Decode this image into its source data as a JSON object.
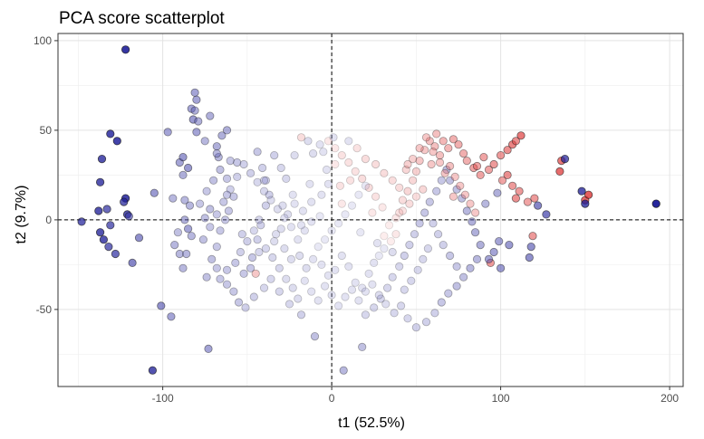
{
  "chart_data": {
    "type": "scatter",
    "title": "PCA score scatterplot",
    "xlabel": "t1 (52.5%)",
    "ylabel": "t2 (9.7%)",
    "xlim": [
      -162,
      208
    ],
    "ylim": [
      -93,
      104
    ],
    "xticks": [
      -100,
      0,
      100,
      200
    ],
    "yticks": [
      -50,
      0,
      50,
      100
    ],
    "xtick_labels": [
      "-100",
      "0",
      "100",
      "200"
    ],
    "ytick_labels": [
      "-50",
      "0",
      "50",
      "100"
    ],
    "grid": true,
    "reference_lines": {
      "x": 0,
      "y": 0,
      "style": "dashed"
    },
    "color_scale": {
      "low": "#00008b",
      "mid": "#ffffff",
      "high": "#d40000",
      "range": [
        -1,
        1
      ]
    },
    "points": [
      [
        -122,
        95,
        -0.95
      ],
      [
        -127,
        44,
        -0.9
      ],
      [
        -131,
        48,
        -0.88
      ],
      [
        -136,
        34,
        -0.85
      ],
      [
        -137,
        21,
        -0.85
      ],
      [
        -138,
        5,
        -0.85
      ],
      [
        -122,
        12,
        -0.9
      ],
      [
        -121,
        3,
        -0.85
      ],
      [
        -123,
        10,
        -0.8
      ],
      [
        -133,
        6,
        -0.75
      ],
      [
        -131,
        -3,
        -0.75
      ],
      [
        -135,
        -11,
        -0.85
      ],
      [
        -137,
        -7,
        -0.85
      ],
      [
        -148,
        -1,
        -0.8
      ],
      [
        -132,
        -15,
        -0.75
      ],
      [
        -128,
        -19,
        -0.75
      ],
      [
        -120,
        2,
        -0.65
      ],
      [
        -114,
        -10,
        -0.6
      ],
      [
        -118,
        -24,
        -0.65
      ],
      [
        -106,
        -84,
        -0.85
      ],
      [
        -101,
        -48,
        -0.6
      ],
      [
        -95,
        -54,
        -0.5
      ],
      [
        -105,
        15,
        -0.55
      ],
      [
        -97,
        49,
        -0.5
      ],
      [
        -90,
        32,
        -0.5
      ],
      [
        -88,
        35,
        -0.55
      ],
      [
        -85,
        29,
        -0.55
      ],
      [
        -83,
        62,
        -0.5
      ],
      [
        -81,
        71,
        -0.5
      ],
      [
        -80,
        67,
        -0.5
      ],
      [
        -82,
        56,
        -0.55
      ],
      [
        -80,
        49,
        -0.5
      ],
      [
        -81,
        61,
        -0.45
      ],
      [
        -79,
        55,
        -0.45
      ],
      [
        -88,
        25,
        -0.45
      ],
      [
        -94,
        12,
        -0.4
      ],
      [
        -87,
        11,
        -0.4
      ],
      [
        -84,
        8,
        -0.4
      ],
      [
        -87,
        0,
        -0.45
      ],
      [
        -85,
        -5,
        -0.5
      ],
      [
        -83,
        -9,
        -0.4
      ],
      [
        -88,
        -27,
        -0.4
      ],
      [
        -90,
        -19,
        -0.4
      ],
      [
        -93,
        -14,
        -0.4
      ],
      [
        -86,
        -19,
        -0.4
      ],
      [
        -91,
        -7,
        -0.35
      ],
      [
        -75,
        1,
        -0.35
      ],
      [
        -72,
        6,
        -0.35
      ],
      [
        -68,
        41,
        -0.45
      ],
      [
        -65,
        47,
        -0.45
      ],
      [
        -62,
        50,
        -0.45
      ],
      [
        -67,
        35,
        -0.4
      ],
      [
        -68,
        37,
        -0.4
      ],
      [
        -72,
        58,
        -0.45
      ],
      [
        -75,
        44,
        -0.4
      ],
      [
        -60,
        33,
        -0.3
      ],
      [
        -62,
        23,
        -0.3
      ],
      [
        -56,
        32,
        -0.3
      ],
      [
        -58,
        13,
        -0.3
      ],
      [
        -61,
        5,
        -0.3
      ],
      [
        -66,
        -6,
        -0.3
      ],
      [
        -68,
        -15,
        -0.3
      ],
      [
        -71,
        -22,
        -0.35
      ],
      [
        -74,
        -32,
        -0.35
      ],
      [
        -73,
        -72,
        -0.5
      ],
      [
        -68,
        -27,
        -0.3
      ],
      [
        -62,
        -28,
        -0.3
      ],
      [
        -57,
        -24,
        -0.3
      ],
      [
        -52,
        -30,
        -0.3
      ],
      [
        -48,
        -27,
        -0.3
      ],
      [
        -47,
        -21,
        -0.3
      ],
      [
        -44,
        -11,
        -0.25
      ],
      [
        -42,
        -3,
        -0.25
      ],
      [
        -39,
        8,
        -0.25
      ],
      [
        -37,
        14,
        -0.25
      ],
      [
        -39,
        22,
        -0.25
      ],
      [
        -41,
        29,
        -0.25
      ],
      [
        -44,
        38,
        -0.3
      ],
      [
        -34,
        36,
        -0.25
      ],
      [
        -30,
        29,
        -0.2
      ],
      [
        -27,
        23,
        -0.2
      ],
      [
        -22,
        36,
        -0.15
      ],
      [
        -18,
        46,
        0.15
      ],
      [
        -14,
        44,
        -0.15
      ],
      [
        -11,
        37,
        -0.15
      ],
      [
        -7,
        42,
        -0.1
      ],
      [
        -5,
        38,
        -0.1
      ],
      [
        -3,
        28,
        -0.1
      ],
      [
        2,
        31,
        0.05
      ],
      [
        1,
        46,
        -0.1
      ],
      [
        -2,
        20,
        -0.1
      ],
      [
        -6,
        14,
        -0.1
      ],
      [
        -12,
        10,
        -0.1
      ],
      [
        -17,
        5,
        -0.1
      ],
      [
        -22,
        9,
        -0.1
      ],
      [
        -26,
        3,
        -0.15
      ],
      [
        -30,
        -5,
        -0.15
      ],
      [
        -34,
        -12,
        -0.15
      ],
      [
        -28,
        -16,
        -0.15
      ],
      [
        -24,
        -22,
        -0.15
      ],
      [
        -19,
        -20,
        -0.15
      ],
      [
        -15,
        -27,
        -0.15
      ],
      [
        -11,
        -22,
        -0.1
      ],
      [
        -6,
        -25,
        -0.1
      ],
      [
        -2,
        -31,
        -0.1
      ],
      [
        2,
        -28,
        -0.1
      ],
      [
        6,
        -20,
        -0.1
      ],
      [
        10,
        -26,
        -0.1
      ],
      [
        14,
        -35,
        -0.1
      ],
      [
        18,
        -38,
        -0.1
      ],
      [
        22,
        -30,
        -0.1
      ],
      [
        25,
        -24,
        -0.1
      ],
      [
        28,
        -20,
        -0.05
      ],
      [
        31,
        -16,
        -0.05
      ],
      [
        35,
        -12,
        0.0
      ],
      [
        38,
        -8,
        0.05
      ],
      [
        40,
        4,
        0.1
      ],
      [
        42,
        11,
        0.15
      ],
      [
        45,
        16,
        0.2
      ],
      [
        48,
        22,
        0.2
      ],
      [
        50,
        27,
        0.25
      ],
      [
        52,
        33,
        0.3
      ],
      [
        55,
        39,
        0.3
      ],
      [
        58,
        44,
        0.35
      ],
      [
        61,
        41,
        0.35
      ],
      [
        64,
        36,
        0.35
      ],
      [
        66,
        44,
        0.4
      ],
      [
        69,
        40,
        0.4
      ],
      [
        72,
        45,
        0.45
      ],
      [
        75,
        42,
        0.45
      ],
      [
        78,
        37,
        0.45
      ],
      [
        80,
        33,
        0.45
      ],
      [
        84,
        29,
        0.5
      ],
      [
        86,
        30,
        0.5
      ],
      [
        88,
        25,
        0.5
      ],
      [
        90,
        35,
        0.5
      ],
      [
        93,
        28,
        0.5
      ],
      [
        96,
        31,
        0.55
      ],
      [
        100,
        36,
        0.55
      ],
      [
        104,
        39,
        0.6
      ],
      [
        107,
        42,
        0.65
      ],
      [
        109,
        44,
        0.6
      ],
      [
        112,
        47,
        0.7
      ],
      [
        104,
        25,
        0.6
      ],
      [
        101,
        22,
        0.5
      ],
      [
        107,
        19,
        0.55
      ],
      [
        109,
        12,
        0.6
      ],
      [
        111,
        16,
        0.55
      ],
      [
        120,
        12,
        0.55
      ],
      [
        116,
        10,
        0.5
      ],
      [
        135,
        27,
        0.75
      ],
      [
        136,
        33,
        0.7
      ],
      [
        150,
        11,
        0.75
      ],
      [
        152,
        14,
        0.8
      ],
      [
        138,
        34,
        -0.8
      ],
      [
        148,
        16,
        -0.85
      ],
      [
        150,
        9,
        -0.85
      ],
      [
        192,
        9,
        -1.0
      ],
      [
        127,
        3,
        -0.7
      ],
      [
        122,
        8,
        -0.65
      ],
      [
        119,
        -9,
        0.55
      ],
      [
        118,
        -15,
        -0.6
      ],
      [
        117,
        -21,
        -0.6
      ],
      [
        105,
        -14,
        -0.55
      ],
      [
        99,
        -12,
        -0.5
      ],
      [
        96,
        -18,
        -0.5
      ],
      [
        94,
        -24,
        0.55
      ],
      [
        100,
        -27,
        -0.55
      ],
      [
        93,
        -22,
        -0.5
      ],
      [
        88,
        -14,
        -0.45
      ],
      [
        85,
        -7,
        -0.45
      ],
      [
        83,
        -1,
        -0.45
      ],
      [
        80,
        5,
        -0.4
      ],
      [
        77,
        12,
        -0.35
      ],
      [
        74,
        17,
        -0.35
      ],
      [
        70,
        22,
        -0.35
      ],
      [
        68,
        28,
        -0.35
      ],
      [
        65,
        22,
        -0.3
      ],
      [
        62,
        16,
        -0.3
      ],
      [
        58,
        10,
        -0.3
      ],
      [
        55,
        4,
        -0.3
      ],
      [
        52,
        -2,
        -0.3
      ],
      [
        49,
        -8,
        -0.25
      ],
      [
        46,
        -14,
        -0.25
      ],
      [
        43,
        -20,
        -0.25
      ],
      [
        40,
        -26,
        -0.2
      ],
      [
        36,
        -32,
        -0.2
      ],
      [
        33,
        -38,
        -0.2
      ],
      [
        29,
        -44,
        -0.2
      ],
      [
        25,
        -49,
        -0.2
      ],
      [
        20,
        -53,
        -0.2
      ],
      [
        18,
        -71,
        -0.35
      ],
      [
        7,
        -84,
        -0.4
      ],
      [
        -10,
        -65,
        -0.35
      ],
      [
        -18,
        -53,
        -0.25
      ],
      [
        -25,
        -47,
        -0.2
      ],
      [
        -31,
        -40,
        -0.2
      ],
      [
        -36,
        -33,
        -0.2
      ],
      [
        -40,
        -38,
        -0.2
      ],
      [
        -46,
        -43,
        -0.25
      ],
      [
        -51,
        -49,
        -0.25
      ],
      [
        -55,
        -46,
        -0.3
      ],
      [
        -58,
        -40,
        -0.3
      ],
      [
        -62,
        -36,
        -0.3
      ],
      [
        -66,
        -33,
        -0.3
      ],
      [
        -54,
        -18,
        -0.25
      ],
      [
        -50,
        -12,
        -0.25
      ],
      [
        -46,
        -6,
        -0.2
      ],
      [
        -43,
        0,
        -0.2
      ],
      [
        -39,
        -16,
        -0.2
      ],
      [
        -35,
        -21,
        -0.2
      ],
      [
        -31,
        -27,
        -0.2
      ],
      [
        -27,
        -33,
        -0.15
      ],
      [
        -23,
        -38,
        -0.15
      ],
      [
        -20,
        -44,
        -0.15
      ],
      [
        -16,
        -34,
        -0.1
      ],
      [
        -12,
        -40,
        -0.1
      ],
      [
        -8,
        -45,
        -0.1
      ],
      [
        -4,
        -37,
        -0.1
      ],
      [
        0,
        -42,
        -0.1
      ],
      [
        4,
        -48,
        -0.1
      ],
      [
        8,
        -43,
        -0.1
      ],
      [
        12,
        -39,
        -0.1
      ],
      [
        16,
        -45,
        -0.1
      ],
      [
        20,
        -40,
        -0.1
      ],
      [
        24,
        -36,
        -0.1
      ],
      [
        28,
        -42,
        -0.15
      ],
      [
        32,
        -47,
        -0.15
      ],
      [
        37,
        -52,
        -0.2
      ],
      [
        41,
        -48,
        -0.2
      ],
      [
        45,
        -55,
        -0.2
      ],
      [
        50,
        -60,
        -0.25
      ],
      [
        56,
        -57,
        -0.25
      ],
      [
        61,
        -52,
        -0.25
      ],
      [
        65,
        -46,
        -0.3
      ],
      [
        69,
        -41,
        -0.3
      ],
      [
        74,
        -37,
        -0.35
      ],
      [
        78,
        -32,
        -0.35
      ],
      [
        82,
        -27,
        -0.4
      ],
      [
        86,
        -22,
        -0.4
      ],
      [
        54,
        17,
        0.2
      ],
      [
        50,
        13,
        0.15
      ],
      [
        46,
        9,
        0.15
      ],
      [
        42,
        5,
        0.1
      ],
      [
        38,
        1,
        0.05
      ],
      [
        34,
        -3,
        0.0
      ],
      [
        30,
        7,
        0.05
      ],
      [
        26,
        13,
        0.1
      ],
      [
        22,
        18,
        0.15
      ],
      [
        18,
        23,
        0.15
      ],
      [
        14,
        27,
        0.1
      ],
      [
        10,
        32,
        0.1
      ],
      [
        6,
        36,
        0.1
      ],
      [
        2,
        40,
        0.05
      ],
      [
        -2,
        44,
        0.05
      ],
      [
        20,
        19,
        -0.05
      ],
      [
        16,
        14,
        -0.05
      ],
      [
        12,
        8,
        -0.05
      ],
      [
        8,
        3,
        -0.05
      ],
      [
        4,
        -2,
        -0.05
      ],
      [
        0,
        -6,
        -0.05
      ],
      [
        -4,
        -11,
        -0.05
      ],
      [
        -8,
        -15,
        -0.05
      ],
      [
        -12,
        -1,
        -0.1
      ],
      [
        -16,
        -6,
        -0.1
      ],
      [
        -20,
        -11,
        -0.1
      ],
      [
        -24,
        -4,
        -0.1
      ],
      [
        -28,
        1,
        -0.1
      ],
      [
        -32,
        6,
        -0.15
      ],
      [
        -36,
        11,
        -0.15
      ],
      [
        -40,
        16,
        -0.2
      ],
      [
        -44,
        21,
        -0.2
      ],
      [
        -48,
        26,
        -0.25
      ],
      [
        -52,
        31,
        -0.25
      ],
      [
        -56,
        24,
        -0.25
      ],
      [
        -60,
        17,
        -0.25
      ],
      [
        -64,
        10,
        -0.3
      ],
      [
        -68,
        3,
        -0.3
      ],
      [
        -72,
        -4,
        -0.3
      ],
      [
        -76,
        -11,
        -0.35
      ],
      [
        -78,
        9,
        -0.3
      ],
      [
        -74,
        16,
        -0.3
      ],
      [
        -70,
        22,
        -0.35
      ],
      [
        -66,
        28,
        -0.35
      ],
      [
        -62,
        14,
        -0.3
      ],
      [
        10,
        44,
        -0.1
      ],
      [
        15,
        40,
        0.1
      ],
      [
        20,
        34,
        0.15
      ],
      [
        26,
        31,
        0.15
      ],
      [
        31,
        26,
        0.15
      ],
      [
        36,
        22,
        0.15
      ],
      [
        40,
        18,
        0.15
      ],
      [
        44,
        28,
        0.2
      ],
      [
        48,
        34,
        0.25
      ],
      [
        52,
        40,
        0.3
      ],
      [
        56,
        46,
        0.3
      ],
      [
        60,
        38,
        0.3
      ],
      [
        64,
        32,
        0.3
      ],
      [
        67,
        26,
        0.3
      ],
      [
        70,
        30,
        0.35
      ],
      [
        73,
        24,
        0.3
      ],
      [
        76,
        19,
        0.3
      ],
      [
        79,
        14,
        0.3
      ],
      [
        82,
        9,
        0.3
      ],
      [
        85,
        4,
        0.3
      ],
      [
        60,
        -2,
        -0.25
      ],
      [
        63,
        -8,
        -0.25
      ],
      [
        66,
        -14,
        -0.25
      ],
      [
        70,
        -20,
        -0.3
      ],
      [
        74,
        -26,
        -0.3
      ],
      [
        57,
        -16,
        -0.2
      ],
      [
        54,
        -22,
        -0.2
      ],
      [
        51,
        -28,
        -0.2
      ],
      [
        47,
        -34,
        -0.2
      ],
      [
        43,
        -39,
        -0.2
      ],
      [
        -45,
        -30,
        0.3
      ],
      [
        -40,
        22,
        -0.2
      ],
      [
        -29,
        8,
        -0.15
      ],
      [
        -18,
        -3,
        -0.1
      ],
      [
        -7,
        2,
        -0.05
      ],
      [
        6,
        9,
        0.05
      ],
      [
        17,
        -7,
        -0.05
      ],
      [
        27,
        -13,
        -0.1
      ],
      [
        36,
        -18,
        -0.15
      ],
      [
        -13,
        20,
        -0.1
      ],
      [
        -23,
        14,
        -0.1
      ],
      [
        -33,
        -8,
        -0.15
      ],
      [
        -43,
        -18,
        -0.2
      ],
      [
        -53,
        -8,
        -0.25
      ],
      [
        -63,
        0,
        -0.3
      ],
      [
        5,
        19,
        0.1
      ],
      [
        11,
        22,
        0.1
      ],
      [
        24,
        4,
        0.05
      ],
      [
        31,
        -9,
        0.0
      ],
      [
        45,
        31,
        0.25
      ],
      [
        59,
        31,
        0.3
      ],
      [
        72,
        13,
        0.3
      ],
      [
        91,
        9,
        -0.4
      ],
      [
        98,
        15,
        -0.45
      ],
      [
        62,
        48,
        0.35
      ]
    ]
  }
}
